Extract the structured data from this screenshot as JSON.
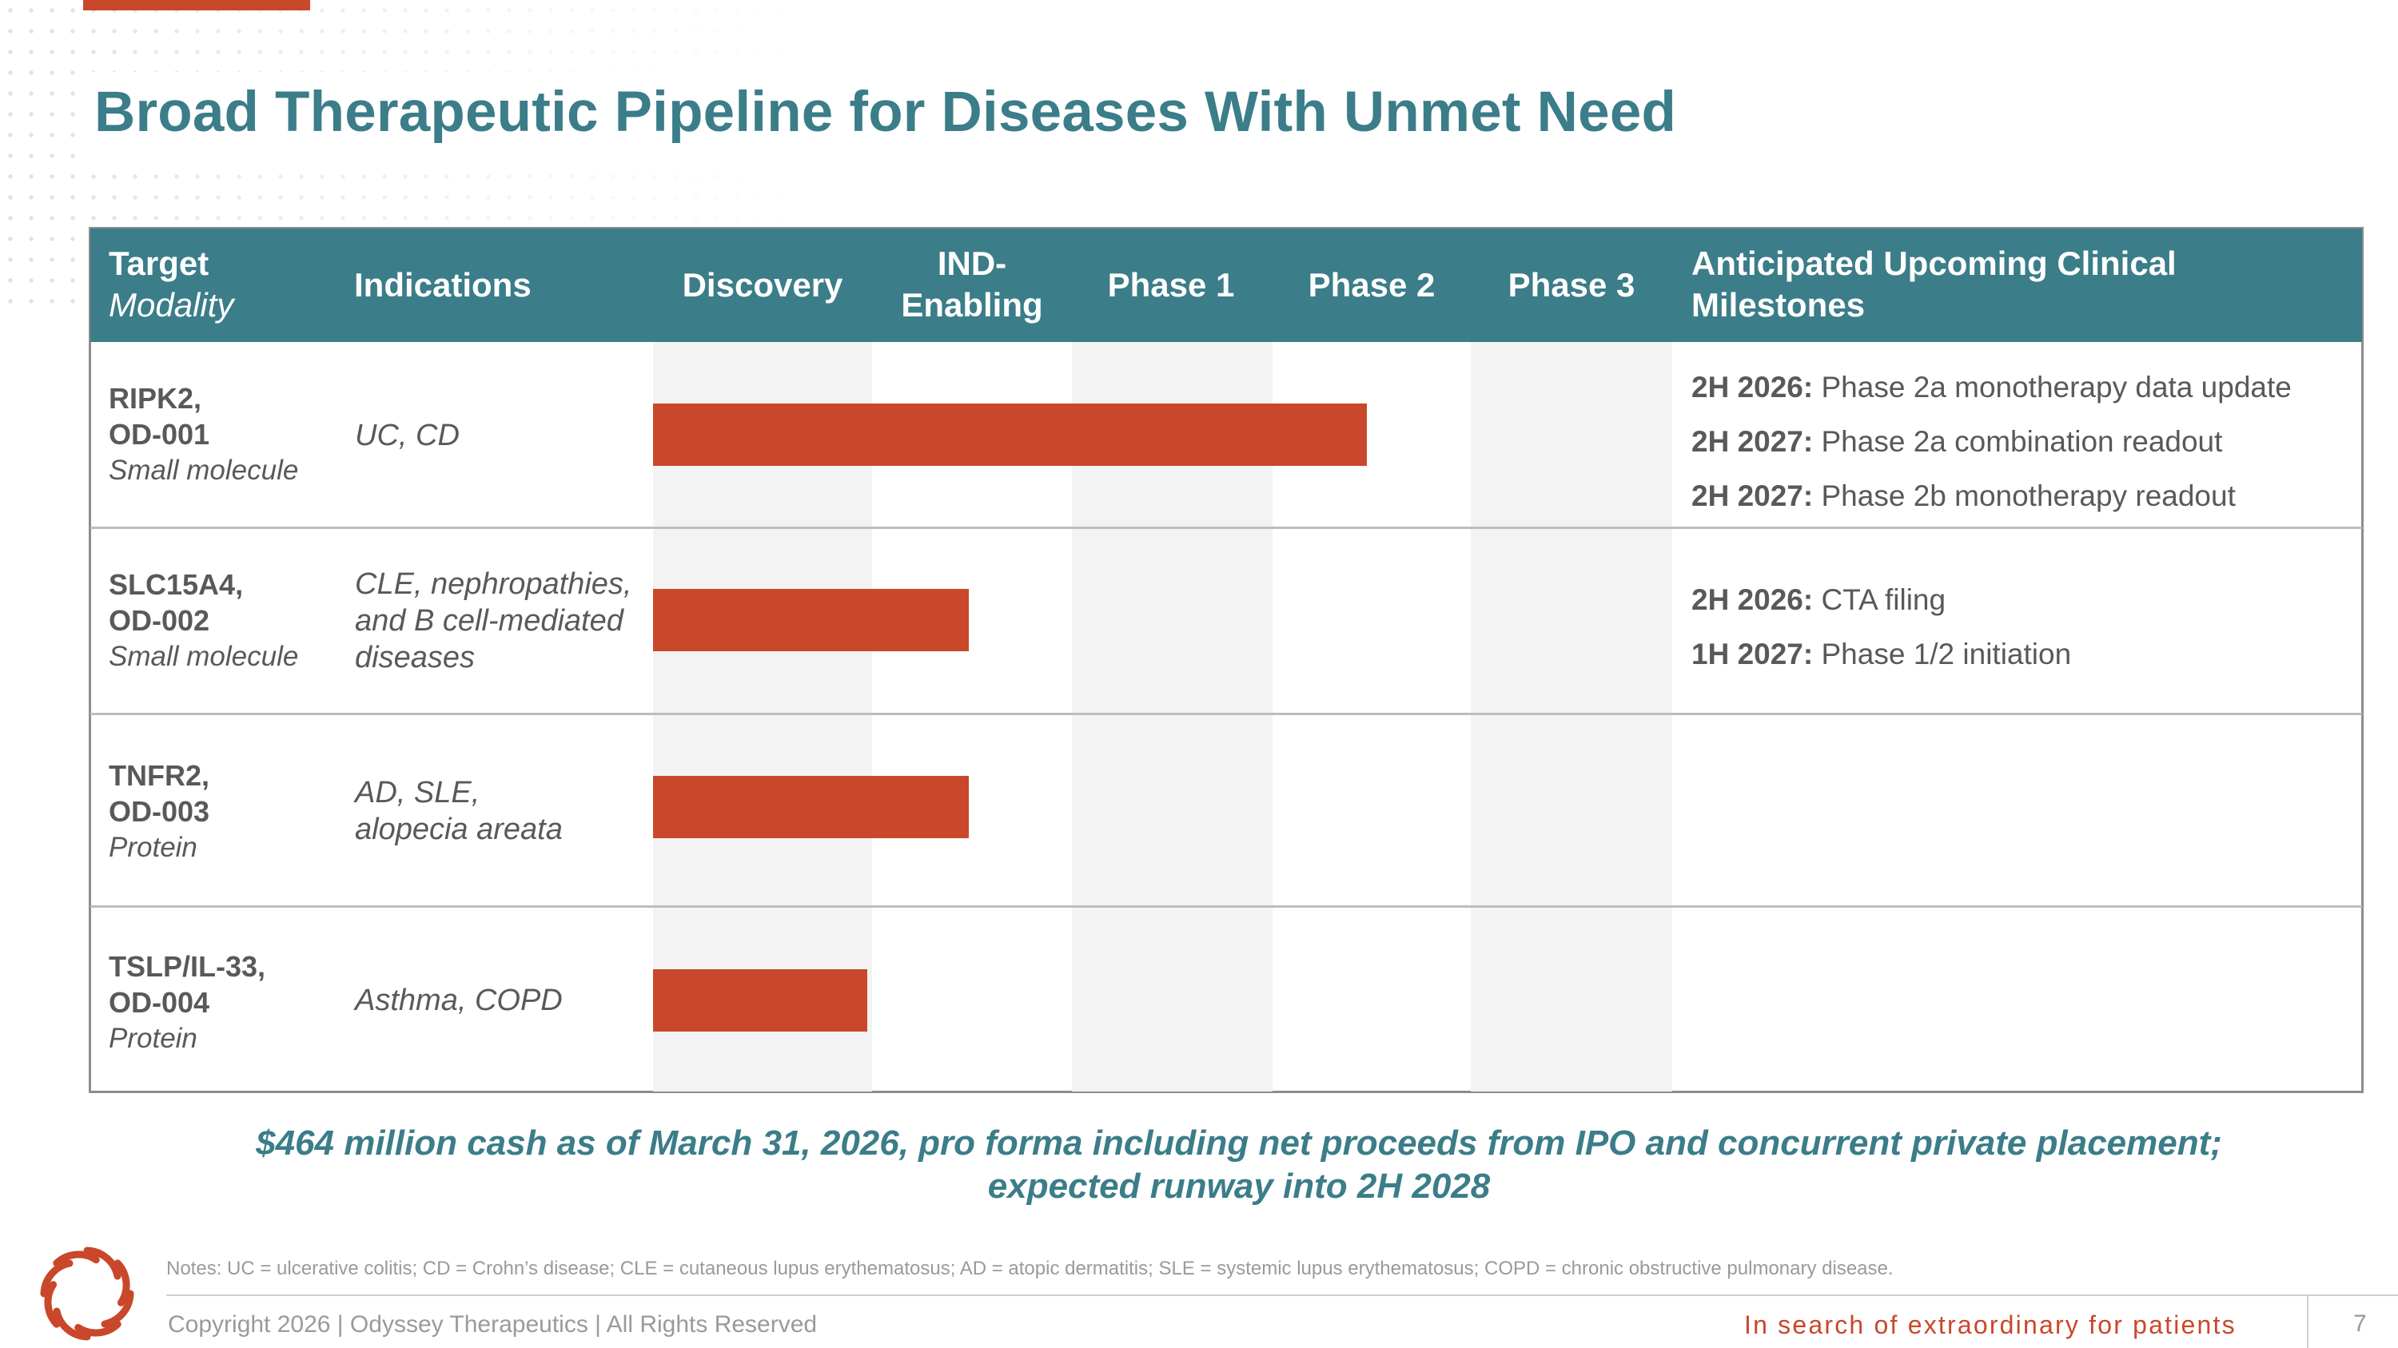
{
  "slide": {
    "title": "Broad Therapeutic Pipeline for Diseases With Unmet Need",
    "page_number": "7"
  },
  "colors": {
    "teal": "#3b7d89",
    "accent_red": "#c9472a",
    "text_gray": "#595959"
  },
  "table": {
    "headers": {
      "target": "Target",
      "modality": "Modality",
      "indications": "Indications",
      "discovery": "Discovery",
      "ind_line1": "IND-",
      "ind_line2": "Enabling",
      "phase1": "Phase 1",
      "phase2": "Phase 2",
      "phase3": "Phase 3",
      "milestones_line1": "Anticipated Upcoming Clinical",
      "milestones_line2": "Milestones"
    },
    "stages": [
      "Discovery",
      "IND-Enabling",
      "Phase 1",
      "Phase 2",
      "Phase 3"
    ],
    "rows": [
      {
        "target_line1": "RIPK2,",
        "target_line2": "OD-001",
        "modality": "Small molecule",
        "indication_lines": [
          "UC, CD"
        ],
        "progress_stage": "Phase 2",
        "progress_fraction_of_pipeline": 0.7,
        "milestones": [
          {
            "when": "2H 2026:",
            "what": "Phase 2a monotherapy data update"
          },
          {
            "when": "2H 2027:",
            "what": "Phase 2a combination readout"
          },
          {
            "when": "2H 2027:",
            "what": "Phase 2b monotherapy readout"
          }
        ]
      },
      {
        "target_line1": "SLC15A4,",
        "target_line2": "OD-002",
        "modality": "Small molecule",
        "indication_lines": [
          "CLE, nephropathies,",
          "and B cell-mediated",
          "diseases"
        ],
        "progress_stage": "IND-Enabling",
        "progress_fraction_of_pipeline": 0.31,
        "milestones": [
          {
            "when": "2H 2026:",
            "what": "CTA filing"
          },
          {
            "when": "1H 2027:",
            "what": "Phase 1/2 initiation"
          }
        ]
      },
      {
        "target_line1": "TNFR2,",
        "target_line2": "OD-003",
        "modality": "Protein",
        "indication_lines": [
          "AD, SLE,",
          "alopecia areata"
        ],
        "progress_stage": "IND-Enabling",
        "progress_fraction_of_pipeline": 0.31,
        "milestones": []
      },
      {
        "target_line1": "TSLP/IL-33,",
        "target_line2": "OD-004",
        "modality": "Protein",
        "indication_lines": [
          "Asthma, COPD"
        ],
        "progress_stage": "Discovery",
        "progress_fraction_of_pipeline": 0.21,
        "milestones": []
      }
    ]
  },
  "cash_note": {
    "line1": "$464 million cash as of March 31, 2026, pro forma including net proceeds from IPO and concurrent private placement;",
    "line2": "expected runway into 2H 2028"
  },
  "footer": {
    "notes": "Notes: UC = ulcerative colitis; CD = Crohn’s disease; CLE = cutaneous lupus erythematosus; AD = atopic dermatitis; SLE = systemic lupus erythematosus; COPD = chronic obstructive pulmonary disease.",
    "copyright": "Copyright 2026  |  Odyssey Therapeutics  |  All Rights Reserved",
    "tagline": "In search of extraordinary for patients"
  },
  "logo": {
    "icon": "odyssey-swirl-logo"
  }
}
